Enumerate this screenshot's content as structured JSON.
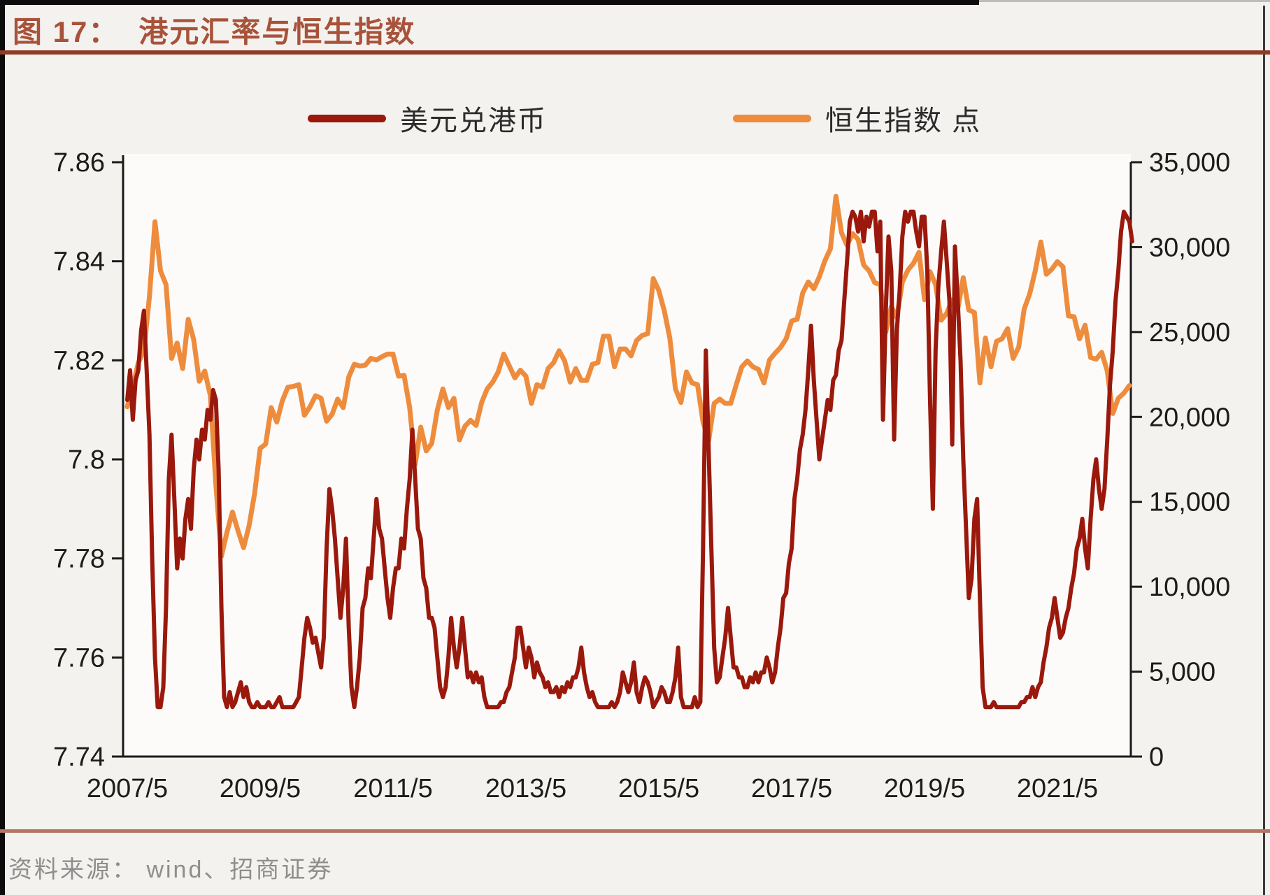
{
  "figure": {
    "label": "图 17：",
    "title": "港元汇率与恒生指数"
  },
  "legend": [
    {
      "name": "美元兑港币",
      "color": "#9a190c"
    },
    {
      "name": "恒生指数 点",
      "color": "#ee8c3e"
    }
  ],
  "source": {
    "text": "资料来源： wind、招商证券"
  },
  "colors": {
    "usdhkd_line": "#9a190c",
    "hsi_line": "#ee8c3e",
    "title_text": "#a8523a",
    "title_rule": "#8f3c27",
    "footer_rule": "#b3765f",
    "axis": "#1a1a1a",
    "plot_background": "#fcfbfa"
  },
  "chart_data": {
    "type": "line",
    "title": "港元汇率与恒生指数",
    "grid": false,
    "legend_position": "top",
    "x_tick_labels": [
      "2007/5",
      "2009/5",
      "2011/5",
      "2013/5",
      "2015/5",
      "2017/5",
      "2019/5",
      "2021/5"
    ],
    "x_years_per_tick": 2,
    "x_range_end_label": "2022/6",
    "axes": {
      "left": {
        "series": "美元兑港币",
        "min": 7.74,
        "max": 7.86,
        "ticks": [
          "7.86",
          "7.84",
          "7.82",
          "7.8",
          "7.78",
          "7.76",
          "7.74"
        ]
      },
      "right": {
        "series": "恒生指数 点",
        "min": 0,
        "max": 35000,
        "ticks": [
          "35,000",
          "30,000",
          "25,000",
          "20,000",
          "15,000",
          "10,000",
          "5,000",
          "0"
        ]
      }
    },
    "series": [
      {
        "id": "hsi",
        "name": "恒生指数 点",
        "axis": "right",
        "color": "#ee8c3e",
        "start_year": 2007,
        "start_month": 5,
        "points_per_year": 12,
        "values": [
          20600,
          21800,
          23200,
          23900,
          27100,
          31500,
          28600,
          27800,
          23450,
          24350,
          22850,
          25750,
          24550,
          22100,
          22700,
          21250,
          16000,
          11800,
          13200,
          14400,
          13300,
          12300,
          13600,
          15500,
          18150,
          18400,
          20550,
          19700,
          20950,
          21750,
          21800,
          21900,
          20100,
          20600,
          21250,
          21100,
          19750,
          20150,
          21050,
          20550,
          22350,
          23100,
          23000,
          23050,
          23450,
          23350,
          23550,
          23700,
          23700,
          22400,
          22450,
          20550,
          17200,
          19400,
          18000,
          18450,
          20400,
          21650,
          20550,
          21100,
          18650,
          19450,
          19800,
          19500,
          20850,
          21650,
          22050,
          22650,
          23700,
          23000,
          22300,
          22750,
          22400,
          20800,
          21900,
          21750,
          22850,
          23200,
          23900,
          23300,
          22050,
          22850,
          22150,
          22150,
          23100,
          23200,
          24750,
          24750,
          22950,
          24000,
          24000,
          23600,
          24500,
          24800,
          24900,
          28150,
          27450,
          26250,
          24650,
          21650,
          20850,
          22650,
          22000,
          21900,
          19700,
          18600,
          20800,
          21050,
          20800,
          20800,
          21900,
          22950,
          23300,
          22950,
          22800,
          22000,
          23350,
          23750,
          24100,
          24600,
          25650,
          25750,
          27300,
          27950,
          27550,
          28250,
          29200,
          29900,
          33000,
          30850,
          30100,
          30800,
          30450,
          28950,
          28600,
          27900,
          27800,
          25000,
          26500,
          25850,
          27950,
          28650,
          29050,
          29700,
          26900,
          28550,
          27800,
          25700,
          26100,
          26900,
          26350,
          28200,
          26300,
          26150,
          22000,
          24650,
          22950,
          24450,
          24600,
          25200,
          23450,
          24100,
          26350,
          27250,
          28600,
          30300,
          28400,
          28700,
          29150,
          28850,
          25950,
          25900,
          24600,
          25400,
          23500,
          23400,
          23800,
          22700,
          20200,
          21100,
          21400,
          21850
        ]
      },
      {
        "id": "usdhkd",
        "name": "美元兑港币",
        "axis": "left",
        "color": "#9a190c",
        "start_year": 2007,
        "start_month": 5,
        "points_per_year": 24,
        "values": [
          7.812,
          7.818,
          7.808,
          7.816,
          7.818,
          7.826,
          7.83,
          7.818,
          7.805,
          7.78,
          7.76,
          7.75,
          7.75,
          7.754,
          7.77,
          7.796,
          7.805,
          7.792,
          7.778,
          7.784,
          7.78,
          7.788,
          7.792,
          7.786,
          7.798,
          7.804,
          7.8,
          7.806,
          7.804,
          7.81,
          7.808,
          7.814,
          7.812,
          7.798,
          7.77,
          7.752,
          7.75,
          7.753,
          7.75,
          7.751,
          7.753,
          7.755,
          7.752,
          7.754,
          7.751,
          7.75,
          7.75,
          7.751,
          7.75,
          7.75,
          7.75,
          7.751,
          7.75,
          7.75,
          7.751,
          7.752,
          7.75,
          7.75,
          7.75,
          7.75,
          7.75,
          7.751,
          7.752,
          7.758,
          7.764,
          7.768,
          7.766,
          7.763,
          7.764,
          7.761,
          7.758,
          7.764,
          7.782,
          7.794,
          7.79,
          7.784,
          7.776,
          7.768,
          7.774,
          7.784,
          7.766,
          7.754,
          7.75,
          7.754,
          7.76,
          7.77,
          7.772,
          7.778,
          7.776,
          7.784,
          7.792,
          7.786,
          7.784,
          7.778,
          7.772,
          7.768,
          7.774,
          7.778,
          7.778,
          7.784,
          7.782,
          7.79,
          7.796,
          7.806,
          7.796,
          7.786,
          7.784,
          7.776,
          7.774,
          7.768,
          7.768,
          7.766,
          7.76,
          7.754,
          7.752,
          7.754,
          7.76,
          7.768,
          7.762,
          7.758,
          7.762,
          7.768,
          7.762,
          7.756,
          7.757,
          7.755,
          7.757,
          7.755,
          7.756,
          7.752,
          7.75,
          7.75,
          7.75,
          7.75,
          7.75,
          7.751,
          7.751,
          7.753,
          7.754,
          7.757,
          7.76,
          7.766,
          7.766,
          7.762,
          7.758,
          7.762,
          7.76,
          7.756,
          7.759,
          7.757,
          7.756,
          7.754,
          7.755,
          7.753,
          7.753,
          7.754,
          7.752,
          7.754,
          7.753,
          7.755,
          7.754,
          7.756,
          7.756,
          7.758,
          7.762,
          7.757,
          7.754,
          7.752,
          7.753,
          7.751,
          7.75,
          7.75,
          7.75,
          7.75,
          7.75,
          7.751,
          7.75,
          7.751,
          7.753,
          7.757,
          7.755,
          7.753,
          7.755,
          7.759,
          7.753,
          7.751,
          7.754,
          7.756,
          7.755,
          7.753,
          7.75,
          7.751,
          7.752,
          7.754,
          7.753,
          7.751,
          7.751,
          7.753,
          7.756,
          7.762,
          7.752,
          7.75,
          7.75,
          7.75,
          7.75,
          7.752,
          7.75,
          7.751,
          7.782,
          7.822,
          7.802,
          7.782,
          7.762,
          7.755,
          7.756,
          7.76,
          7.764,
          7.77,
          7.764,
          7.758,
          7.758,
          7.756,
          7.756,
          7.754,
          7.754,
          7.756,
          7.755,
          7.757,
          7.755,
          7.757,
          7.757,
          7.76,
          7.758,
          7.755,
          7.757,
          7.762,
          7.766,
          7.772,
          7.773,
          7.779,
          7.782,
          7.792,
          7.796,
          7.802,
          7.805,
          7.81,
          7.818,
          7.827,
          7.816,
          7.808,
          7.8,
          7.804,
          7.808,
          7.812,
          7.81,
          7.816,
          7.817,
          7.822,
          7.824,
          7.832,
          7.84,
          7.848,
          7.85,
          7.849,
          7.846,
          7.85,
          7.844,
          7.849,
          7.847,
          7.85,
          7.85,
          7.842,
          7.848,
          7.808,
          7.83,
          7.845,
          7.838,
          7.804,
          7.826,
          7.834,
          7.845,
          7.85,
          7.848,
          7.85,
          7.85,
          7.846,
          7.843,
          7.849,
          7.849,
          7.838,
          7.812,
          7.79,
          7.822,
          7.835,
          7.842,
          7.848,
          7.84,
          7.832,
          7.803,
          7.843,
          7.832,
          7.82,
          7.8,
          7.786,
          7.772,
          7.776,
          7.788,
          7.792,
          7.772,
          7.754,
          7.75,
          7.75,
          7.75,
          7.751,
          7.75,
          7.75,
          7.75,
          7.75,
          7.75,
          7.75,
          7.75,
          7.75,
          7.75,
          7.751,
          7.751,
          7.752,
          7.752,
          7.754,
          7.752,
          7.754,
          7.755,
          7.759,
          7.762,
          7.766,
          7.768,
          7.772,
          7.768,
          7.764,
          7.765,
          7.768,
          7.77,
          7.774,
          7.777,
          7.782,
          7.784,
          7.788,
          7.782,
          7.778,
          7.788,
          7.796,
          7.8,
          7.794,
          7.79,
          7.794,
          7.804,
          7.815,
          7.822,
          7.832,
          7.838,
          7.846,
          7.85,
          7.849,
          7.848,
          7.844
        ]
      }
    ]
  }
}
